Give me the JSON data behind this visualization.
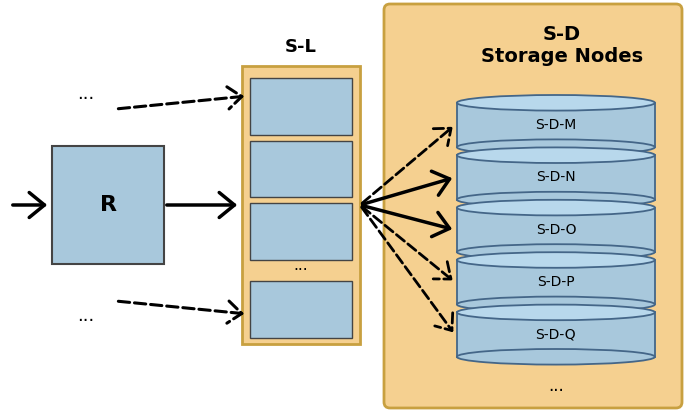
{
  "bg_color": "#ffffff",
  "box_color": "#a8c8dc",
  "box_edge": "#444444",
  "sl_bg": "#f5d090",
  "sl_edge": "#c8a040",
  "sd_bg": "#f5d090",
  "sd_edge": "#c8a040",
  "cyl_body": "#a8c8dc",
  "cyl_top": "#b8d8ec",
  "cyl_edge": "#446688",
  "r_label": "R",
  "sl_label": "S-L",
  "sd_title": "S-D\nStorage Nodes",
  "sd_nodes": [
    "S-D-M",
    "S-D-N",
    "S-D-O",
    "S-D-P",
    "S-D-Q"
  ]
}
